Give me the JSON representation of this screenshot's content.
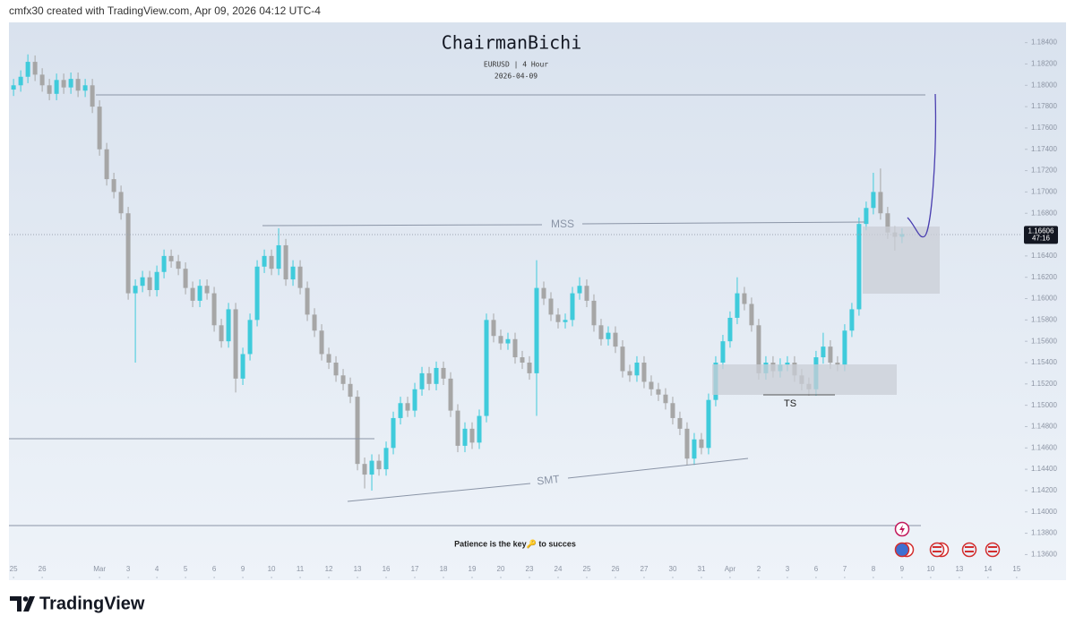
{
  "header": {
    "text": "cmfx30 created with TradingView.com, Apr 09, 2026 04:12 UTC-4"
  },
  "footer": {
    "brand": "TradingView"
  },
  "chart_data": {
    "type": "candlestick",
    "title": "ChairmanBichi",
    "subtitle": "EURUSD | 4 Hour",
    "date_label": "2026-04-09",
    "countdown": "47:16",
    "annotations": [
      "MSS",
      "SMT",
      "TS",
      "Patience is the key🔑 to succes"
    ],
    "up_color": "#3fcbdb",
    "down_color": "#a6a6a6",
    "grid": false,
    "xlim": [
      -0.16,
      35.16
    ],
    "ylim": [
      1.1336,
      1.1859
    ],
    "xticks": [
      {
        "value": 0,
        "label": "25"
      },
      {
        "value": 1,
        "label": "26"
      },
      {
        "value": 3,
        "label": "Mar"
      },
      {
        "value": 4,
        "label": "3"
      },
      {
        "value": 5,
        "label": "4"
      },
      {
        "value": 6,
        "label": "5"
      },
      {
        "value": 7,
        "label": "6"
      },
      {
        "value": 8,
        "label": "9"
      },
      {
        "value": 9,
        "label": "10"
      },
      {
        "value": 10,
        "label": "11"
      },
      {
        "value": 11,
        "label": "12"
      },
      {
        "value": 12,
        "label": "13"
      },
      {
        "value": 13,
        "label": "16"
      },
      {
        "value": 14,
        "label": "17"
      },
      {
        "value": 15,
        "label": "18"
      },
      {
        "value": 16,
        "label": "19"
      },
      {
        "value": 17,
        "label": "20"
      },
      {
        "value": 18,
        "label": "23"
      },
      {
        "value": 19,
        "label": "24"
      },
      {
        "value": 20,
        "label": "25"
      },
      {
        "value": 21,
        "label": "26"
      },
      {
        "value": 22,
        "label": "27"
      },
      {
        "value": 23,
        "label": "30"
      },
      {
        "value": 24,
        "label": "31"
      },
      {
        "value": 25,
        "label": "Apr"
      },
      {
        "value": 26,
        "label": "2"
      },
      {
        "value": 27,
        "label": "3"
      },
      {
        "value": 28,
        "label": "6"
      },
      {
        "value": 29,
        "label": "7"
      },
      {
        "value": 30,
        "label": "8"
      },
      {
        "value": 31,
        "label": "9"
      },
      {
        "value": 32,
        "label": "10"
      },
      {
        "value": 33,
        "label": "13"
      },
      {
        "value": 34,
        "label": "14"
      },
      {
        "value": 35,
        "label": "15"
      }
    ],
    "yticks": [
      {
        "value": 1.184,
        "label": "1.18400"
      },
      {
        "value": 1.182,
        "label": "1.18200"
      },
      {
        "value": 1.18,
        "label": "1.18000"
      },
      {
        "value": 1.178,
        "label": "1.17800"
      },
      {
        "value": 1.176,
        "label": "1.17600"
      },
      {
        "value": 1.174,
        "label": "1.17400"
      },
      {
        "value": 1.172,
        "label": "1.17200"
      },
      {
        "value": 1.17,
        "label": "1.17000"
      },
      {
        "value": 1.168,
        "label": "1.16800"
      },
      {
        "value": 1.164,
        "label": "1.16400"
      },
      {
        "value": 1.162,
        "label": "1.16200"
      },
      {
        "value": 1.16,
        "label": "1.16000"
      },
      {
        "value": 1.158,
        "label": "1.15800"
      },
      {
        "value": 1.156,
        "label": "1.15600"
      },
      {
        "value": 1.154,
        "label": "1.15400"
      },
      {
        "value": 1.152,
        "label": "1.15200"
      },
      {
        "value": 1.15,
        "label": "1.15000"
      },
      {
        "value": 1.148,
        "label": "1.14800"
      },
      {
        "value": 1.146,
        "label": "1.14600"
      },
      {
        "value": 1.144,
        "label": "1.14400"
      },
      {
        "value": 1.142,
        "label": "1.14200"
      },
      {
        "value": 1.14,
        "label": "1.14000"
      },
      {
        "value": 1.138,
        "label": "1.13800"
      },
      {
        "value": 1.136,
        "label": "1.13600"
      }
    ],
    "x": [
      0,
      0.25,
      0.5,
      0.75,
      1,
      1.25,
      1.5,
      1.75,
      2,
      2.25,
      2.5,
      2.75,
      3,
      3.25,
      3.5,
      3.75,
      4,
      4.25,
      4.5,
      4.75,
      5,
      5.25,
      5.5,
      5.75,
      6,
      6.25,
      6.5,
      6.75,
      7,
      7.25,
      7.5,
      7.75,
      8,
      8.25,
      8.5,
      8.75,
      9,
      9.25,
      9.5,
      9.75,
      10,
      10.25,
      10.5,
      10.75,
      11,
      11.25,
      11.5,
      11.75,
      12,
      12.25,
      12.5,
      12.75,
      13,
      13.25,
      13.5,
      13.75,
      14,
      14.25,
      14.5,
      14.75,
      15,
      15.25,
      15.5,
      15.75,
      16,
      16.25,
      16.5,
      16.75,
      17,
      17.25,
      17.5,
      17.75,
      18,
      18.25,
      18.5,
      18.75,
      19,
      19.25,
      19.5,
      19.75,
      20,
      20.25,
      20.5,
      20.75,
      21,
      21.25,
      21.5,
      21.75,
      22,
      22.25,
      22.5,
      22.75,
      23,
      23.25,
      23.5,
      23.75,
      24,
      24.25,
      24.5,
      24.75,
      25,
      25.25,
      25.5,
      25.75,
      26,
      26.25,
      26.5,
      26.75,
      27,
      27.25,
      27.5,
      27.75,
      28,
      28.25,
      28.5,
      28.75,
      29,
      29.25,
      29.5,
      29.75,
      30,
      30.25,
      30.5,
      30.75,
      31
    ],
    "open": [
      1.1796,
      1.18,
      1.1808,
      1.1822,
      1.181,
      1.18,
      1.1792,
      1.1805,
      1.1798,
      1.1806,
      1.1795,
      1.18,
      1.178,
      1.174,
      1.1712,
      1.17,
      1.168,
      1.1605,
      1.1612,
      1.162,
      1.1608,
      1.1625,
      1.164,
      1.1635,
      1.1628,
      1.161,
      1.1598,
      1.1612,
      1.1605,
      1.1575,
      1.156,
      1.159,
      1.1525,
      1.1548,
      1.158,
      1.163,
      1.164,
      1.1628,
      1.165,
      1.1618,
      1.163,
      1.161,
      1.1585,
      1.157,
      1.1548,
      1.154,
      1.1528,
      1.152,
      1.1508,
      1.1445,
      1.1435,
      1.1448,
      1.144,
      1.146,
      1.1488,
      1.1502,
      1.1495,
      1.1515,
      1.153,
      1.152,
      1.1535,
      1.1525,
      1.1495,
      1.1462,
      1.1478,
      1.1465,
      1.149,
      1.158,
      1.1565,
      1.1558,
      1.1562,
      1.1545,
      1.154,
      1.153,
      1.161,
      1.16,
      1.1585,
      1.1578,
      1.158,
      1.1605,
      1.1612,
      1.1598,
      1.1575,
      1.1562,
      1.1568,
      1.1555,
      1.1532,
      1.1528,
      1.154,
      1.1522,
      1.1515,
      1.151,
      1.1502,
      1.1488,
      1.1478,
      1.145,
      1.1468,
      1.146,
      1.1505,
      1.154,
      1.156,
      1.1582,
      1.1605,
      1.1595,
      1.1575,
      1.153,
      1.154,
      1.1532,
      1.1538,
      1.154,
      1.1528,
      1.152,
      1.1515,
      1.1545,
      1.1555,
      1.154,
      1.1538,
      1.157,
      1.159,
      1.167,
      1.1685,
      1.17,
      1.168,
      1.1662,
      1.1658
    ],
    "high": [
      1.1806,
      1.1814,
      1.1829,
      1.1828,
      1.1816,
      1.1806,
      1.1811,
      1.1811,
      1.1812,
      1.1812,
      1.1806,
      1.1806,
      1.1786,
      1.1746,
      1.1718,
      1.1706,
      1.1686,
      1.1618,
      1.1626,
      1.1626,
      1.1631,
      1.1646,
      1.1646,
      1.1641,
      1.1634,
      1.1616,
      1.1618,
      1.1618,
      1.1611,
      1.1581,
      1.1596,
      1.1596,
      1.1554,
      1.1586,
      1.1636,
      1.1646,
      1.1646,
      1.1666,
      1.1656,
      1.1636,
      1.1636,
      1.1616,
      1.1591,
      1.1576,
      1.1554,
      1.1546,
      1.1534,
      1.1526,
      1.1514,
      1.1451,
      1.1454,
      1.1454,
      1.1466,
      1.1494,
      1.1508,
      1.1508,
      1.1521,
      1.1536,
      1.1536,
      1.1541,
      1.1541,
      1.1531,
      1.1501,
      1.1484,
      1.1484,
      1.1496,
      1.1586,
      1.1586,
      1.1571,
      1.1568,
      1.1568,
      1.1551,
      1.1546,
      1.1636,
      1.1616,
      1.1606,
      1.1591,
      1.1586,
      1.1611,
      1.162,
      1.1618,
      1.1604,
      1.1581,
      1.1574,
      1.1574,
      1.1561,
      1.1538,
      1.1546,
      1.1546,
      1.1528,
      1.1521,
      1.1516,
      1.1508,
      1.1494,
      1.1484,
      1.1474,
      1.1474,
      1.1511,
      1.1546,
      1.1566,
      1.1588,
      1.162,
      1.1611,
      1.1601,
      1.1581,
      1.1546,
      1.1546,
      1.1544,
      1.1546,
      1.1546,
      1.1534,
      1.1526,
      1.1551,
      1.1568,
      1.1561,
      1.1546,
      1.1576,
      1.1596,
      1.1676,
      1.1691,
      1.1718,
      1.1722,
      1.1686,
      1.1668,
      1.1666
    ],
    "low": [
      1.179,
      1.1794,
      1.1802,
      1.1804,
      1.1794,
      1.1786,
      1.1786,
      1.1792,
      1.1792,
      1.1789,
      1.1789,
      1.1774,
      1.1734,
      1.1706,
      1.1694,
      1.1674,
      1.1599,
      1.154,
      1.1606,
      1.1602,
      1.1602,
      1.1619,
      1.1629,
      1.1622,
      1.1604,
      1.1592,
      1.1592,
      1.1599,
      1.1569,
      1.1554,
      1.1554,
      1.1512,
      1.1519,
      1.1542,
      1.1574,
      1.1624,
      1.1622,
      1.1622,
      1.1612,
      1.1612,
      1.1604,
      1.1579,
      1.1564,
      1.1542,
      1.1534,
      1.1522,
      1.1514,
      1.1502,
      1.1439,
      1.1422,
      1.142,
      1.1434,
      1.1434,
      1.1454,
      1.1482,
      1.1489,
      1.1489,
      1.1509,
      1.1514,
      1.1514,
      1.1519,
      1.1489,
      1.1456,
      1.1456,
      1.1459,
      1.1459,
      1.1484,
      1.1559,
      1.1552,
      1.1552,
      1.1539,
      1.1534,
      1.1524,
      1.149,
      1.1594,
      1.1579,
      1.1572,
      1.1572,
      1.1574,
      1.1599,
      1.1592,
      1.1569,
      1.1556,
      1.1556,
      1.1549,
      1.1526,
      1.1522,
      1.1522,
      1.1516,
      1.1509,
      1.1504,
      1.1496,
      1.1482,
      1.1472,
      1.1444,
      1.1444,
      1.1454,
      1.1454,
      1.1499,
      1.1534,
      1.1554,
      1.1576,
      1.1589,
      1.1569,
      1.1524,
      1.1524,
      1.1526,
      1.1526,
      1.1532,
      1.1522,
      1.1514,
      1.1509,
      1.1509,
      1.1539,
      1.1534,
      1.1532,
      1.1532,
      1.1564,
      1.1584,
      1.1664,
      1.1679,
      1.1674,
      1.1656,
      1.1645,
      1.1652
    ],
    "close": [
      1.18,
      1.1808,
      1.1822,
      1.181,
      1.18,
      1.1792,
      1.1805,
      1.1798,
      1.1806,
      1.1795,
      1.18,
      1.178,
      1.174,
      1.1712,
      1.17,
      1.168,
      1.1605,
      1.1612,
      1.162,
      1.1608,
      1.1625,
      1.164,
      1.1635,
      1.1628,
      1.161,
      1.1598,
      1.1612,
      1.1605,
      1.1575,
      1.156,
      1.159,
      1.1525,
      1.1548,
      1.158,
      1.163,
      1.164,
      1.1628,
      1.165,
      1.1618,
      1.163,
      1.161,
      1.1585,
      1.157,
      1.1548,
      1.154,
      1.1528,
      1.152,
      1.1508,
      1.1445,
      1.1435,
      1.1448,
      1.144,
      1.146,
      1.1488,
      1.1502,
      1.1495,
      1.1515,
      1.153,
      1.152,
      1.1535,
      1.1525,
      1.1495,
      1.1462,
      1.1478,
      1.1465,
      1.149,
      1.158,
      1.1565,
      1.1558,
      1.1562,
      1.1545,
      1.154,
      1.153,
      1.161,
      1.16,
      1.1585,
      1.1578,
      1.158,
      1.1605,
      1.1612,
      1.1598,
      1.1575,
      1.1562,
      1.1568,
      1.1555,
      1.1532,
      1.1528,
      1.154,
      1.1522,
      1.1515,
      1.151,
      1.1502,
      1.1488,
      1.1478,
      1.145,
      1.1468,
      1.146,
      1.1505,
      1.154,
      1.156,
      1.1582,
      1.1605,
      1.1595,
      1.1575,
      1.153,
      1.154,
      1.1532,
      1.1538,
      1.154,
      1.1528,
      1.152,
      1.1515,
      1.1545,
      1.1555,
      1.154,
      1.1538,
      1.157,
      1.159,
      1.167,
      1.1685,
      1.17,
      1.168,
      1.1662,
      1.1658,
      1.16606
    ]
  }
}
